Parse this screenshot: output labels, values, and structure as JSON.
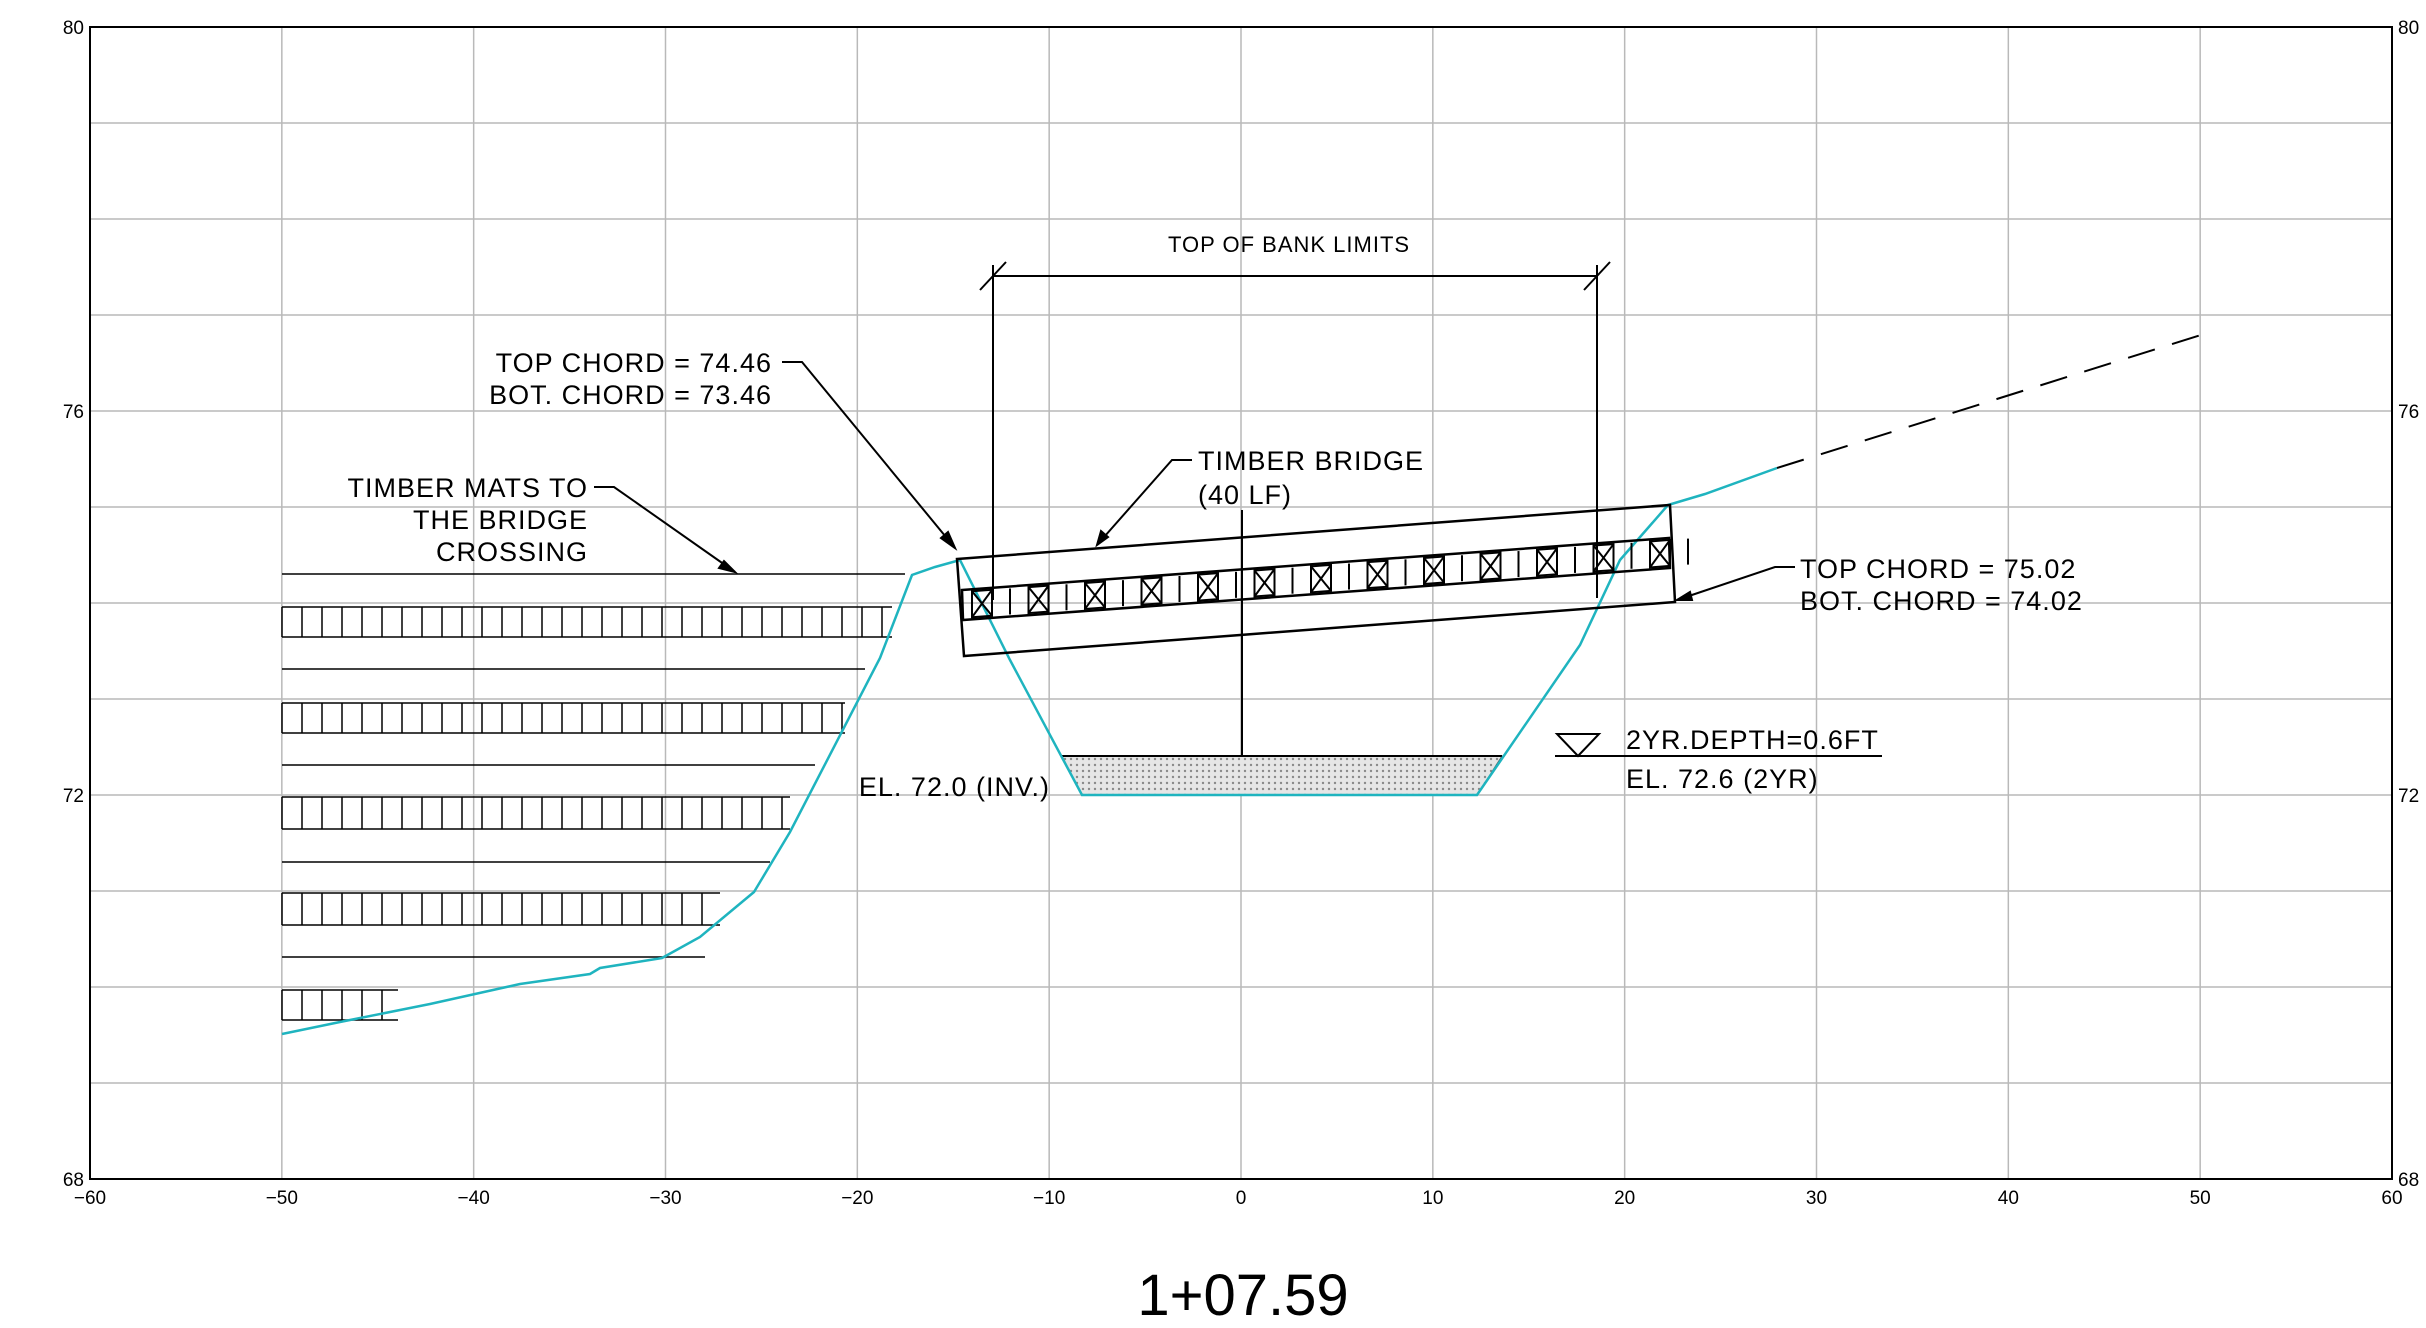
{
  "x_ticks": [
    "−60",
    "−50",
    "−40",
    "−30",
    "−20",
    "−10",
    "0",
    "10",
    "20",
    "30",
    "40",
    "50",
    "60"
  ],
  "y_ticks_left": [
    "80",
    "76",
    "72",
    "68"
  ],
  "y_ticks_right": [
    "80",
    "76",
    "72",
    "68"
  ],
  "labels": {
    "top_of_bank": "TOP OF BANK LIMITS",
    "left_chord_top": "TOP CHORD = 74.46",
    "left_chord_bot": "BOT. CHORD = 73.46",
    "timber_mats_1": "TIMBER MATS TO",
    "timber_mats_2": "THE BRIDGE",
    "timber_mats_3": "CROSSING",
    "bridge_1": "TIMBER BRIDGE",
    "bridge_2": "(40 LF)",
    "right_chord_top": "TOP CHORD = 75.02",
    "right_chord_bot": "BOT. CHORD = 74.02",
    "depth": "2YR.DEPTH=0.6FT",
    "el_2yr": "EL. 72.6 (2YR)",
    "el_inv": "EL. 72.0 (INV.)"
  },
  "station": "1+07.59",
  "colors": {
    "ground": "#1fb4bf",
    "grid": "#b9b9b9",
    "line": "#000000",
    "water": "#bdbdbd"
  },
  "x_range": [
    -60,
    60
  ],
  "y_range": [
    68,
    80
  ]
}
